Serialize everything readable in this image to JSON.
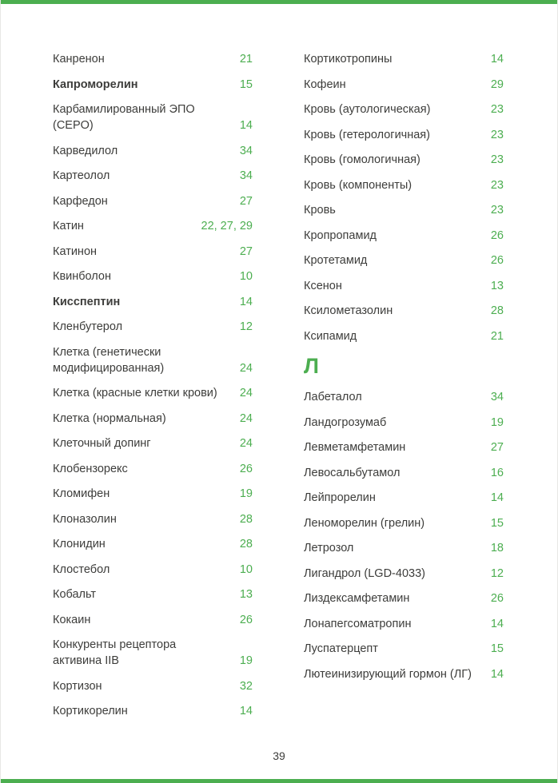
{
  "colors": {
    "accent_green": "#4cae50",
    "text": "#3d3d3b",
    "page_background": "#ffffff"
  },
  "page": {
    "number": "39"
  },
  "columns": [
    {
      "name": "left",
      "items": [
        {
          "type": "entry",
          "term": "Канренон",
          "pages": "21"
        },
        {
          "type": "entry",
          "term": "Капроморелин",
          "pages": "15",
          "bold": true
        },
        {
          "type": "entry",
          "term": "Карбамилированный ЭПО (CEPO)",
          "pages": "14"
        },
        {
          "type": "entry",
          "term": "Карведилол",
          "pages": "34"
        },
        {
          "type": "entry",
          "term": "Картеолол",
          "pages": "34"
        },
        {
          "type": "entry",
          "term": "Карфедон",
          "pages": "27"
        },
        {
          "type": "entry",
          "term": "Катин",
          "pages": "22, 27, 29"
        },
        {
          "type": "entry",
          "term": "Катинон",
          "pages": "27"
        },
        {
          "type": "entry",
          "term": "Квинболон",
          "pages": "10"
        },
        {
          "type": "entry",
          "term": "Кисспептин",
          "pages": "14",
          "bold": true
        },
        {
          "type": "entry",
          "term": "Кленбутерол",
          "pages": "12"
        },
        {
          "type": "entry",
          "term": "Клетка (генетически\nмодифицированная)",
          "pages": "24"
        },
        {
          "type": "entry",
          "term": "Клетка (красные клетки крови)",
          "pages": "24"
        },
        {
          "type": "entry",
          "term": "Клетка (нормальная)",
          "pages": "24"
        },
        {
          "type": "entry",
          "term": "Клеточный допинг",
          "pages": "24"
        },
        {
          "type": "entry",
          "term": "Клобензорекс",
          "pages": "26"
        },
        {
          "type": "entry",
          "term": "Кломифен",
          "pages": "19"
        },
        {
          "type": "entry",
          "term": "Клоназолин",
          "pages": "28"
        },
        {
          "type": "entry",
          "term": "Клонидин",
          "pages": "28"
        },
        {
          "type": "entry",
          "term": "Клостебол",
          "pages": "10"
        },
        {
          "type": "entry",
          "term": "Кобальт",
          "pages": "13"
        },
        {
          "type": "entry",
          "term": "Кокаин",
          "pages": "26"
        },
        {
          "type": "entry",
          "term": "Конкуренты рецептора\nактивина IIB",
          "pages": "19"
        },
        {
          "type": "entry",
          "term": "Кортизон",
          "pages": "32"
        },
        {
          "type": "entry",
          "term": "Кортикорелин",
          "pages": "14"
        }
      ]
    },
    {
      "name": "right",
      "items": [
        {
          "type": "entry",
          "term": "Кортикотропины",
          "pages": "14"
        },
        {
          "type": "entry",
          "term": "Кофеин",
          "pages": "29"
        },
        {
          "type": "entry",
          "term": "Кровь (аутологическая)",
          "pages": "23"
        },
        {
          "type": "entry",
          "term": "Кровь (гетерологичная)",
          "pages": "23"
        },
        {
          "type": "entry",
          "term": "Кровь (гомологичная)",
          "pages": "23"
        },
        {
          "type": "entry",
          "term": "Кровь (компоненты)",
          "pages": "23"
        },
        {
          "type": "entry",
          "term": "Кровь",
          "pages": "23"
        },
        {
          "type": "entry",
          "term": "Кропропамид",
          "pages": "26"
        },
        {
          "type": "entry",
          "term": "Кротетамид",
          "pages": "26"
        },
        {
          "type": "entry",
          "term": "Ксенон",
          "pages": "13"
        },
        {
          "type": "entry",
          "term": "Ксилометазолин",
          "pages": "28"
        },
        {
          "type": "entry",
          "term": "Ксипамид",
          "pages": "21"
        },
        {
          "type": "header",
          "label": "Л"
        },
        {
          "type": "entry",
          "term": "Лабеталол",
          "pages": "34"
        },
        {
          "type": "entry",
          "term": "Ландогрозумаб",
          "pages": "19"
        },
        {
          "type": "entry",
          "term": "Левметамфетамин",
          "pages": "27"
        },
        {
          "type": "entry",
          "term": "Левосальбутамол",
          "pages": "16"
        },
        {
          "type": "entry",
          "term": "Лейпрорелин",
          "pages": "14"
        },
        {
          "type": "entry",
          "term": "Леноморелин (грелин)",
          "pages": "15"
        },
        {
          "type": "entry",
          "term": "Летрозол",
          "pages": "18"
        },
        {
          "type": "entry",
          "term": "Лигандрол (LGD-4033)",
          "pages": "12"
        },
        {
          "type": "entry",
          "term": "Лиздексамфетамин",
          "pages": "26"
        },
        {
          "type": "entry",
          "term": "Лонапегсоматропин",
          "pages": "14"
        },
        {
          "type": "entry",
          "term": "Луспатерцепт",
          "pages": "15"
        },
        {
          "type": "entry",
          "term": "Лютеинизирующий гормон (ЛГ)",
          "pages": "14"
        }
      ]
    }
  ]
}
